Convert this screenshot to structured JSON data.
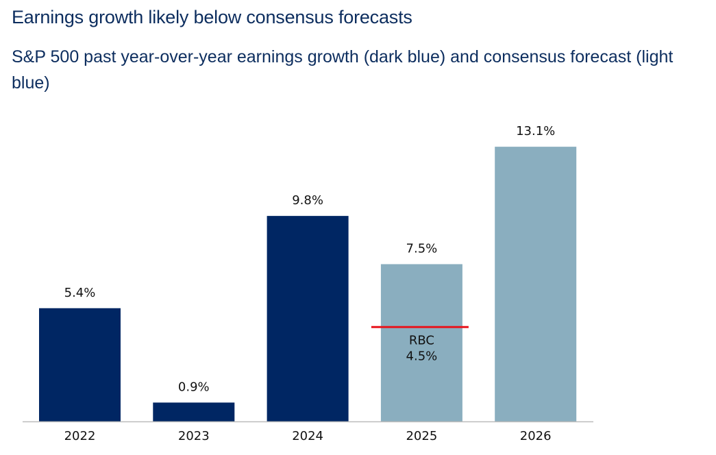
{
  "chart_data": {
    "type": "bar",
    "title": "Earnings growth likely below consensus forecasts",
    "subtitle": "S&P 500 past year-over-year earnings growth (dark blue) and consensus forecast (light blue)",
    "categories": [
      "2022",
      "2023",
      "2024",
      "2025",
      "2026"
    ],
    "values": [
      5.4,
      0.9,
      9.8,
      7.5,
      13.1
    ],
    "data_labels": [
      "5.4%",
      "0.9%",
      "9.8%",
      "7.5%",
      "13.1%"
    ],
    "series_type": [
      "actual",
      "actual",
      "actual",
      "forecast",
      "forecast"
    ],
    "colors": {
      "actual": "#002663",
      "forecast": "#8aaebf",
      "rbc_line": "#e8141c"
    },
    "annotation": {
      "category": "2025",
      "value": 4.5,
      "label_line1": "RBC",
      "label_line2": "4.5%"
    },
    "xlabel": "",
    "ylabel": "",
    "ylim": [
      0,
      13.2
    ],
    "grid": false,
    "legend": "none"
  }
}
